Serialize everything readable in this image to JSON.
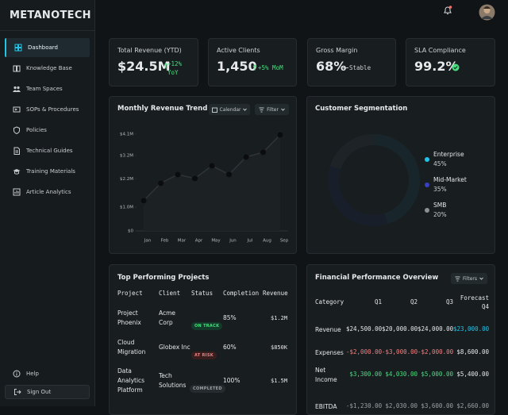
{
  "brand": "METANOTECH",
  "nav": [
    "Dashboard",
    "Knowledge Base",
    "Team Spaces",
    "SOPs & Procedures",
    "Policies",
    "Technical Guides",
    "Training Materials",
    "Article Analytics"
  ],
  "footer_nav": [
    "Help",
    "Sign Out"
  ],
  "kpis": [
    {
      "label": "Total Revenue (YTD)",
      "value": "$24.5M",
      "delta": "+12% YoY"
    },
    {
      "label": "Active Clients",
      "value": "1,450",
      "delta": "+5% MoM"
    },
    {
      "label": "Gross Margin",
      "value": "68%",
      "delta": "Stable"
    },
    {
      "label": "SLA Compliance",
      "value": "99.2%"
    }
  ],
  "chart_data": [
    {
      "type": "line",
      "title": "Monthly Revenue Trend",
      "controls": [
        "Calendar",
        "Filter"
      ],
      "categories": [
        "Jan",
        "Feb",
        "Mar",
        "Apr",
        "May",
        "Jun",
        "Jul",
        "Aug",
        "Sep"
      ],
      "values": [
        1.28,
        2.02,
        2.39,
        2.22,
        2.76,
        2.39,
        3.13,
        3.33,
        4.07
      ],
      "color": "#2e3438",
      "ylim": [
        0,
        4.1
      ],
      "yticks": [
        {
          "value": 0,
          "label": "$0"
        },
        {
          "value": 1.0,
          "label": "$1.0M"
        },
        {
          "value": 2.2,
          "label": "$2.2M"
        },
        {
          "value": 3.2,
          "label": "$3.2M"
        },
        {
          "value": 4.1,
          "label": "$4.1M"
        }
      ]
    },
    {
      "type": "pie",
      "title": "Customer Segmentation",
      "categories": [
        "Enterprise",
        "Mid-Market",
        "SMB"
      ],
      "values": [
        45,
        35,
        20
      ],
      "value_labels": [
        "45%",
        "35%",
        "20%"
      ],
      "colors": [
        "#22c3e6",
        "#3b3fc4",
        "#8a8f94"
      ]
    }
  ],
  "projects": {
    "title": "Top Performing Projects",
    "columns": [
      "Project",
      "Client",
      "Status",
      "Completion",
      "Revenue"
    ],
    "rows": [
      [
        "Project Phoenix",
        "Acme Corp",
        "ON TRACK",
        "85%",
        "$1.2M"
      ],
      [
        "Cloud Migration",
        "Globex Inc",
        "AT RISK",
        "60%",
        "$850K"
      ],
      [
        "Data Analytics Platform",
        "Tech Solutions",
        "COMPLETED",
        "100%",
        "$1.5M"
      ]
    ]
  },
  "financial": {
    "title": "Financial Performance Overview",
    "button": "Filters",
    "columns": [
      "Category",
      "Q1",
      "Q2",
      "Q3",
      "Forecast Q4"
    ],
    "rows": [
      [
        "Revenue",
        "$24,500.00",
        "$20,000.00",
        "$24,000.00",
        "$23,000.00"
      ],
      [
        "Expenses",
        "-$2,000.00",
        "-$3,000.00",
        "-$2,000.00",
        "$8,600.00"
      ],
      [
        "Net Income",
        "$3,300.00",
        "$4,030.00",
        "$5,000.00",
        "$5,400.00"
      ],
      [
        "EBITDA",
        "-$1,230.00",
        "$2,030.00",
        "$3,600.00",
        "$2,660.00"
      ]
    ]
  }
}
